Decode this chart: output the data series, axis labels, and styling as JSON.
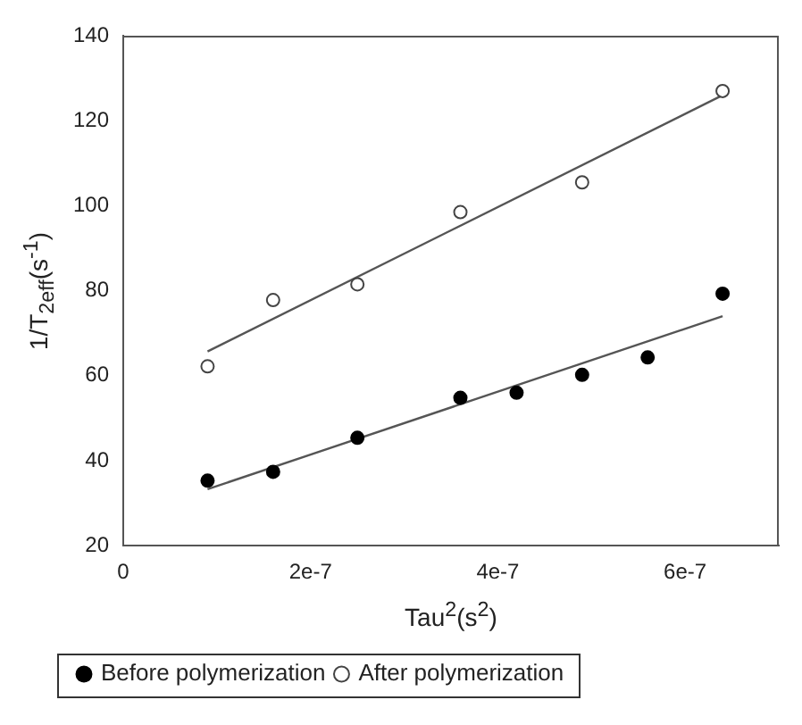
{
  "chart_data": {
    "type": "scatter",
    "xlabel": "Tau$^{2}$(s$^{2}$)",
    "ylabel": "1/T$_{2eff}$(s$^{-1}$)",
    "xlim": [
      0,
      7e-07
    ],
    "xticks": [
      0,
      {
        "value": 2e-07,
        "label": "2e-7"
      },
      {
        "value": 4e-07,
        "label": "4e-7"
      },
      {
        "value": 6e-07,
        "label": "6e-7"
      }
    ],
    "ylim": [
      20,
      140
    ],
    "yticks": [
      20,
      40,
      60,
      80,
      100,
      120,
      140
    ],
    "grid": false,
    "legend": "bottom left",
    "marker": "circle",
    "series": [
      {
        "name": "Before polymerization",
        "type": "scatter",
        "color": "#000000",
        "x": [
          9e-08,
          1.6e-07,
          2.5e-07,
          3.6e-07,
          4.2e-07,
          4.9e-07,
          5.6e-07,
          6.4e-07
        ],
        "values": [
          35.3,
          37.4,
          45.4,
          54.8,
          56,
          60.2,
          64.3,
          79.3
        ]
      },
      {
        "name": "After polymerization",
        "type": "scatter",
        "color": "#444444",
        "x": [
          9e-08,
          1.6e-07,
          2.5e-07,
          3.6e-07,
          4.9e-07,
          6.4e-07
        ],
        "values": [
          62.2,
          77.8,
          81.5,
          98.5,
          105.5,
          127
        ]
      },
      {
        "type": "line",
        "color": "#555555",
        "marker": "none",
        "x": [
          9e-08,
          6.4e-07
        ],
        "values": [
          33.3,
          74
        ]
      },
      {
        "type": "line",
        "color": "#555555",
        "marker": "none",
        "x": [
          9e-08,
          6.4e-07
        ],
        "values": [
          65.7,
          126
        ]
      }
    ]
  }
}
